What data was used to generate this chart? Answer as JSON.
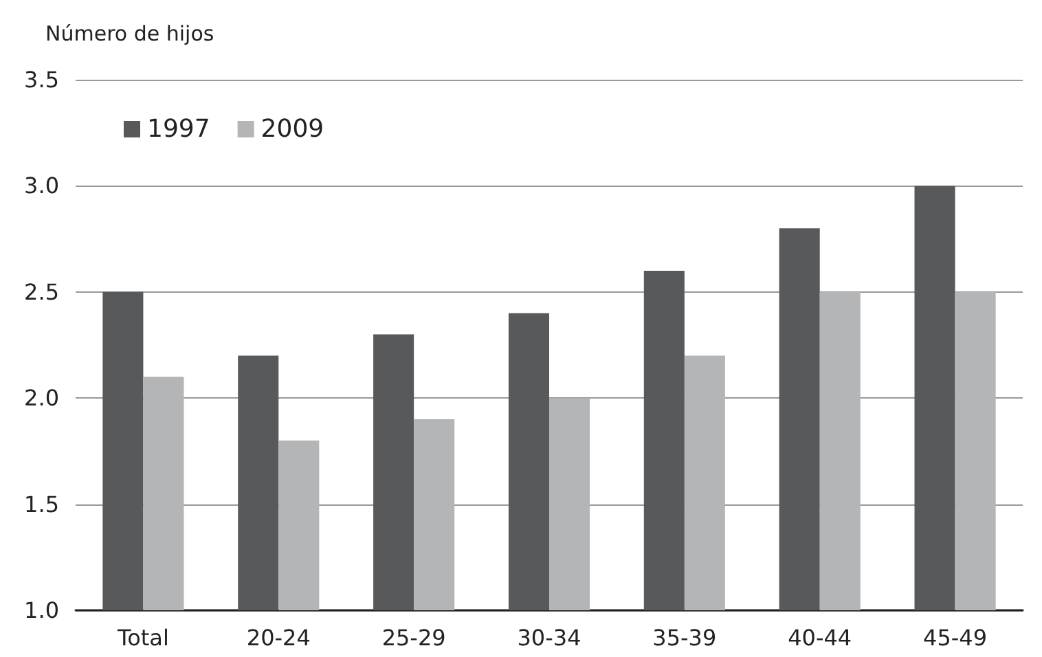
{
  "chart_data": {
    "type": "bar",
    "ylabel": "Número de hijos",
    "categories": [
      "Total",
      "20-24",
      "25-29",
      "30-34",
      "35-39",
      "40-44",
      "45-49"
    ],
    "series": [
      {
        "name": "1997",
        "color": "#58595b",
        "values": [
          2.5,
          2.2,
          2.3,
          2.4,
          2.6,
          2.8,
          3.0
        ]
      },
      {
        "name": "2009",
        "color": "#b4b5b7",
        "values": [
          2.1,
          1.8,
          1.9,
          2.0,
          2.2,
          2.5,
          2.5
        ]
      }
    ],
    "ylim": [
      1,
      3.5
    ],
    "yticks": [
      {
        "value": 1,
        "label": "1.0"
      },
      {
        "value": 1.5,
        "label": "1.5"
      },
      {
        "value": 2,
        "label": "2.0"
      },
      {
        "value": 2.5,
        "label": "2.5"
      },
      {
        "value": 3,
        "label": "3.0"
      },
      {
        "value": 3.5,
        "label": "3.5"
      }
    ],
    "grid": "y",
    "legend": "top left"
  }
}
